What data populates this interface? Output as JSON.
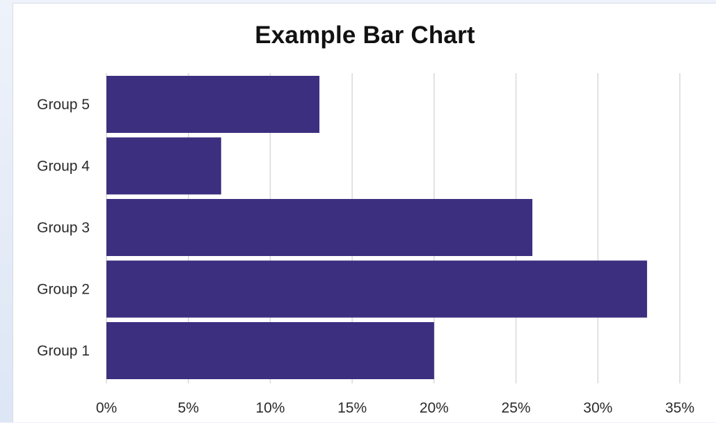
{
  "chart_data": {
    "type": "bar",
    "orientation": "horizontal",
    "title": "Example Bar Chart",
    "xlabel": "",
    "ylabel": "",
    "categories": [
      "Group 1",
      "Group 2",
      "Group 3",
      "Group 4",
      "Group 5"
    ],
    "values": [
      20,
      33,
      26,
      7,
      13
    ],
    "value_unit": "%",
    "xlim": [
      0,
      35
    ],
    "x_ticks": [
      "0%",
      "5%",
      "10%",
      "15%",
      "20%",
      "25%",
      "30%",
      "35%"
    ],
    "x_tick_values": [
      0,
      5,
      10,
      15,
      20,
      25,
      30,
      35
    ],
    "grid": "vertical",
    "legend": "none",
    "bar_color": "#3c2f7f",
    "grid_color": "#d9d9d9"
  }
}
